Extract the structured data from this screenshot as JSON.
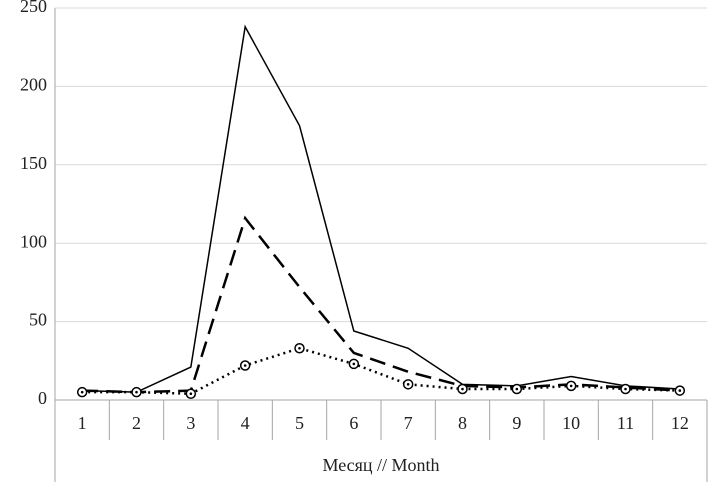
{
  "chart_data": {
    "type": "line",
    "x_label": "Месяц // Month",
    "categories": [
      "1",
      "2",
      "3",
      "4",
      "5",
      "6",
      "7",
      "8",
      "9",
      "10",
      "11",
      "12"
    ],
    "series": [
      {
        "color": "#000000",
        "dash": "solid",
        "values": [
          6,
          5,
          21,
          238,
          175,
          44,
          33,
          10,
          9,
          15,
          9,
          7
        ]
      },
      {
        "color": "#000000",
        "dash": "dashed",
        "values": [
          6,
          5,
          6,
          116,
          72,
          30,
          18,
          9,
          8,
          10,
          8,
          6
        ]
      },
      {
        "color": "#000000",
        "dash": "dotted",
        "marker": "circle",
        "values": [
          5,
          5,
          4,
          22,
          33,
          23,
          10,
          7,
          7,
          9,
          7,
          6
        ]
      }
    ],
    "ylim": [
      0,
      250
    ],
    "yticks": [
      0,
      50,
      100,
      150,
      200,
      250
    ],
    "grid": true
  }
}
